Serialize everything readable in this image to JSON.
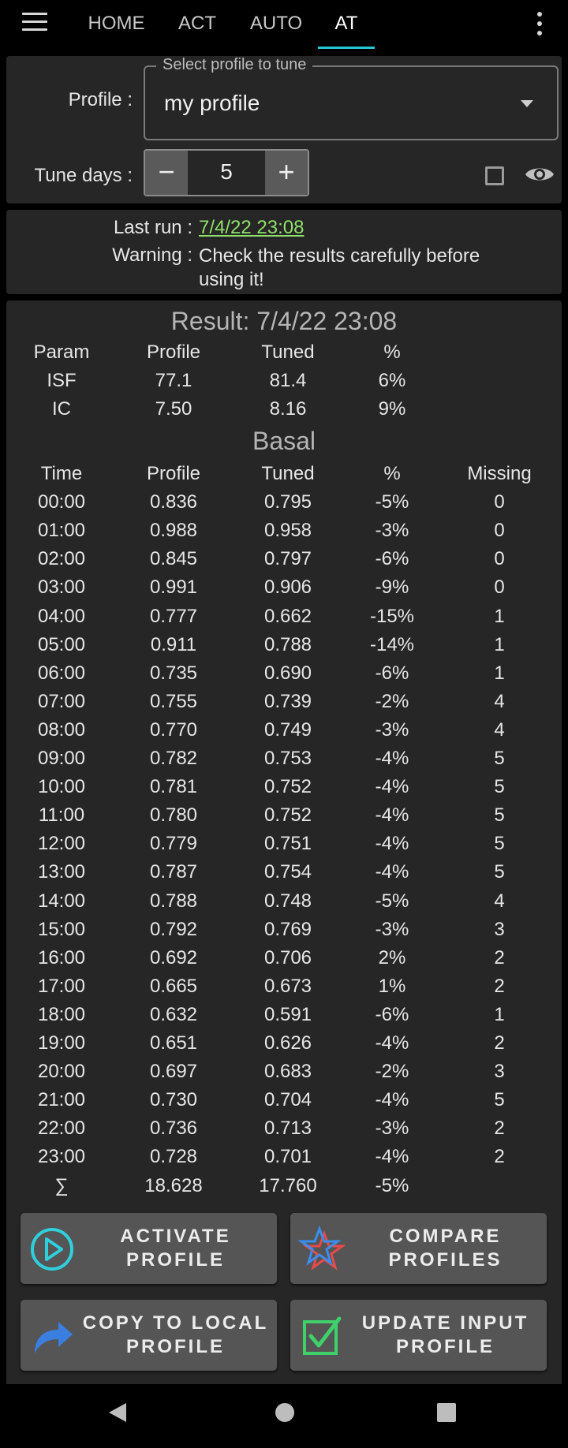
{
  "tabs": [
    {
      "label": "HOME"
    },
    {
      "label": "ACT"
    },
    {
      "label": "AUTO"
    },
    {
      "label": "AT"
    }
  ],
  "profile_panel": {
    "profile_label": "Profile :",
    "select_legend": "Select profile to tune",
    "select_value": "my profile",
    "tune_days_label": "Tune days :",
    "minus": "−",
    "plus": "+",
    "tune_days_value": "5"
  },
  "info": {
    "last_run_label": "Last run :",
    "last_run_value": "7/4/22 23:08",
    "warning_label": "Warning :",
    "warning_text": "Check the results carefully before using it!"
  },
  "result": {
    "title": "Result: 7/4/22 23:08",
    "param_headers": [
      "Param",
      "Profile",
      "Tuned",
      "%"
    ],
    "params": [
      [
        "ISF",
        "77.1",
        "81.4",
        "6%"
      ],
      [
        "IC",
        "7.50",
        "8.16",
        "9%"
      ]
    ],
    "basal_title": "Basal",
    "basal_headers": [
      "Time",
      "Profile",
      "Tuned",
      "%",
      "Missing"
    ],
    "basal_rows": [
      [
        "00:00",
        "0.836",
        "0.795",
        "-5%",
        "0"
      ],
      [
        "01:00",
        "0.988",
        "0.958",
        "-3%",
        "0"
      ],
      [
        "02:00",
        "0.845",
        "0.797",
        "-6%",
        "0"
      ],
      [
        "03:00",
        "0.991",
        "0.906",
        "-9%",
        "0"
      ],
      [
        "04:00",
        "0.777",
        "0.662",
        "-15%",
        "1"
      ],
      [
        "05:00",
        "0.911",
        "0.788",
        "-14%",
        "1"
      ],
      [
        "06:00",
        "0.735",
        "0.690",
        "-6%",
        "1"
      ],
      [
        "07:00",
        "0.755",
        "0.739",
        "-2%",
        "4"
      ],
      [
        "08:00",
        "0.770",
        "0.749",
        "-3%",
        "4"
      ],
      [
        "09:00",
        "0.782",
        "0.753",
        "-4%",
        "5"
      ],
      [
        "10:00",
        "0.781",
        "0.752",
        "-4%",
        "5"
      ],
      [
        "11:00",
        "0.780",
        "0.752",
        "-4%",
        "5"
      ],
      [
        "12:00",
        "0.779",
        "0.751",
        "-4%",
        "5"
      ],
      [
        "13:00",
        "0.787",
        "0.754",
        "-4%",
        "5"
      ],
      [
        "14:00",
        "0.788",
        "0.748",
        "-5%",
        "4"
      ],
      [
        "15:00",
        "0.792",
        "0.769",
        "-3%",
        "3"
      ],
      [
        "16:00",
        "0.692",
        "0.706",
        "2%",
        "2"
      ],
      [
        "17:00",
        "0.665",
        "0.673",
        "1%",
        "2"
      ],
      [
        "18:00",
        "0.632",
        "0.591",
        "-6%",
        "1"
      ],
      [
        "19:00",
        "0.651",
        "0.626",
        "-4%",
        "2"
      ],
      [
        "20:00",
        "0.697",
        "0.683",
        "-2%",
        "3"
      ],
      [
        "21:00",
        "0.730",
        "0.704",
        "-4%",
        "5"
      ],
      [
        "22:00",
        "0.736",
        "0.713",
        "-3%",
        "2"
      ],
      [
        "23:00",
        "0.728",
        "0.701",
        "-4%",
        "2"
      ]
    ],
    "sum_row": [
      "∑",
      "18.628",
      "17.760",
      "-5%"
    ]
  },
  "buttons": {
    "activate": {
      "line1": "ACTIVATE",
      "line2": "PROFILE"
    },
    "compare": {
      "line1": "COMPARE",
      "line2": "PROFILES"
    },
    "copy_local": {
      "line1": "COPY TO LOCAL",
      "line2": "PROFILE"
    },
    "update_input": {
      "line1": "UPDATE INPUT",
      "line2": "PROFILE"
    }
  },
  "colors": {
    "accent_tab": "#27c7d0",
    "link_green": "#8fe06a",
    "panel_bg": "#262626",
    "button_bg": "#555555"
  }
}
